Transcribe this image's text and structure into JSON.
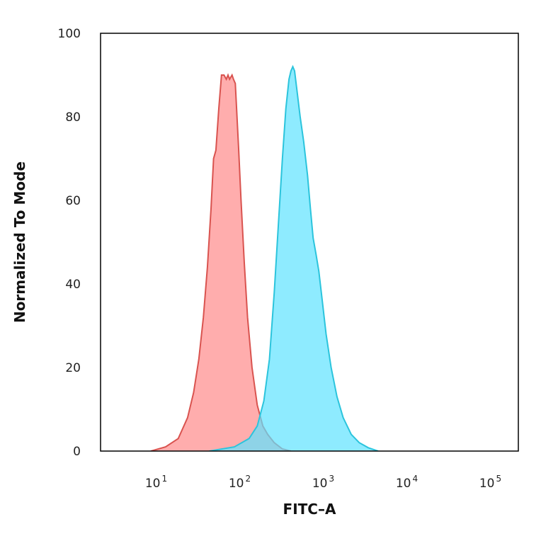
{
  "chart_data": {
    "type": "area",
    "title": "",
    "xlabel": "FITC–A",
    "ylabel": "Normalized To Mode",
    "x_scale": "log",
    "xlim": [
      2,
      200000
    ],
    "ylim": [
      0,
      100
    ],
    "grid": false,
    "legend": "none",
    "y_ticks": [
      "0",
      "20",
      "40",
      "60",
      "80",
      "100"
    ],
    "y_tick_values": [
      0,
      20,
      40,
      60,
      80,
      100
    ],
    "x_ticks": [
      {
        "base": "10",
        "exp": "1",
        "value": 10
      },
      {
        "base": "10",
        "exp": "2",
        "value": 100
      },
      {
        "base": "10",
        "exp": "3",
        "value": 1000
      },
      {
        "base": "10",
        "exp": "4",
        "value": 10000
      },
      {
        "base": "10",
        "exp": "5",
        "value": 100000
      }
    ],
    "series": [
      {
        "color": "#d9534f",
        "fill": "#ff8a8a",
        "points": [
          [
            8,
            0
          ],
          [
            12,
            1
          ],
          [
            17,
            3
          ],
          [
            22,
            8
          ],
          [
            26,
            14
          ],
          [
            30,
            22
          ],
          [
            34,
            32
          ],
          [
            38,
            44
          ],
          [
            42,
            58
          ],
          [
            45,
            70
          ],
          [
            48,
            72
          ],
          [
            52,
            82
          ],
          [
            56,
            90
          ],
          [
            60,
            90
          ],
          [
            64,
            89
          ],
          [
            67,
            90
          ],
          [
            70,
            89
          ],
          [
            75,
            90
          ],
          [
            78,
            89
          ],
          [
            82,
            88
          ],
          [
            85,
            82
          ],
          [
            90,
            72
          ],
          [
            96,
            60
          ],
          [
            105,
            45
          ],
          [
            115,
            32
          ],
          [
            130,
            20
          ],
          [
            150,
            11
          ],
          [
            175,
            6
          ],
          [
            200,
            4
          ],
          [
            240,
            2
          ],
          [
            300,
            0.5
          ],
          [
            380,
            0
          ]
        ]
      },
      {
        "color": "#2bc4dc",
        "fill": "#5ee3ff",
        "points": [
          [
            40,
            0
          ],
          [
            80,
            1
          ],
          [
            120,
            3
          ],
          [
            150,
            6
          ],
          [
            180,
            12
          ],
          [
            210,
            22
          ],
          [
            240,
            38
          ],
          [
            270,
            55
          ],
          [
            300,
            70
          ],
          [
            330,
            82
          ],
          [
            360,
            89
          ],
          [
            380,
            91
          ],
          [
            400,
            92
          ],
          [
            420,
            91
          ],
          [
            450,
            86
          ],
          [
            490,
            80
          ],
          [
            540,
            74
          ],
          [
            600,
            66
          ],
          [
            650,
            58
          ],
          [
            700,
            51
          ],
          [
            760,
            47
          ],
          [
            820,
            43
          ],
          [
            900,
            36
          ],
          [
            1000,
            28
          ],
          [
            1150,
            20
          ],
          [
            1350,
            13
          ],
          [
            1600,
            8
          ],
          [
            2000,
            4
          ],
          [
            2500,
            2
          ],
          [
            3200,
            0.8
          ],
          [
            4200,
            0
          ]
        ]
      }
    ]
  }
}
